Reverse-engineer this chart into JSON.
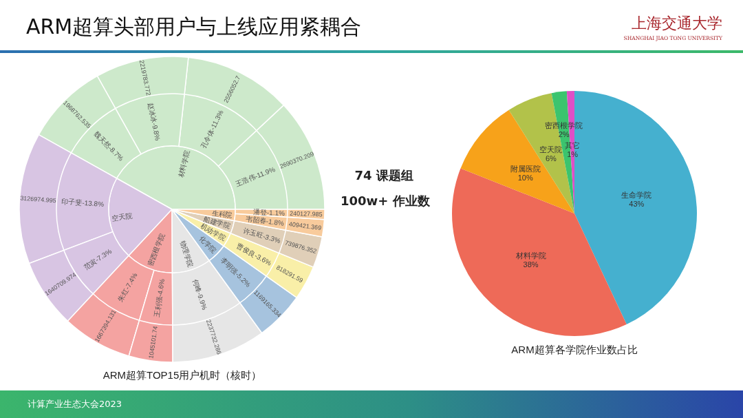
{
  "chart_data": [
    {
      "type": "other",
      "title": "ARM超算TOP15用户机时（核时）",
      "categories": [
        "王浩伟-11.9%",
        "孔令体-11.3%",
        "赵冰冰-9.8%",
        "魏天然-8.7%",
        "印子斐-13.8%",
        "范寅-7.3%",
        "朱红-7.4%",
        "王利强-4.6%",
        "何峰-9.9%",
        "李明强-5.2%",
        "曹俊良-3.6%",
        "许玉旺-3.3%",
        "韦韶春-1.8%",
        "潘登-1.1%"
      ],
      "series": [
        {
          "name": "材料学院",
          "color": "#cde9cb",
          "values": [
            2690370.209,
            2556052.7,
            2219783.772,
            1968762.535,
            null,
            null,
            null,
            null,
            null,
            null,
            null,
            null,
            null,
            null
          ]
        },
        {
          "name": "空天院",
          "color": "#d8c5e3",
          "values": [
            null,
            null,
            null,
            null,
            3126974.995,
            1640709.974,
            null,
            null,
            null,
            null,
            null,
            null,
            null,
            null
          ]
        },
        {
          "name": "密西根学院",
          "color": "#f4a3a1",
          "values": [
            null,
            null,
            null,
            null,
            null,
            null,
            1667394.131,
            1045101.74,
            null,
            null,
            null,
            null,
            null,
            null
          ]
        },
        {
          "name": "物理学院",
          "color": "#e6e6e6",
          "values": [
            null,
            null,
            null,
            null,
            null,
            null,
            null,
            null,
            2237732.286,
            null,
            null,
            null,
            null,
            null
          ]
        },
        {
          "name": "化学院",
          "color": "#a6c3de",
          "values": [
            null,
            null,
            null,
            null,
            null,
            null,
            null,
            null,
            null,
            1169165.334,
            null,
            null,
            null,
            null
          ]
        },
        {
          "name": "机动学院",
          "color": "#f9efa8",
          "values": [
            null,
            null,
            null,
            null,
            null,
            null,
            null,
            null,
            null,
            null,
            818291.59,
            null,
            null,
            null
          ]
        },
        {
          "name": "船建学院",
          "color": "#e0cfb8",
          "values": [
            null,
            null,
            null,
            null,
            null,
            null,
            null,
            null,
            null,
            null,
            null,
            739876.352,
            null,
            null
          ]
        },
        {
          "name": "生科院",
          "color": "#f8cb9c",
          "values": [
            null,
            null,
            null,
            null,
            null,
            null,
            null,
            null,
            null,
            null,
            null,
            null,
            409421.369,
            240127.985
          ]
        }
      ],
      "data_labels": true,
      "annotations": [
        "ARM超算头部用户与上线应用紧耦合",
        "上海交通大学",
        "SHANGHAI JIAO TONG UNIVERSITY",
        "计算产业生态大会2023"
      ]
    },
    {
      "type": "pie",
      "title": "ARM超算各学院作业数占比",
      "categories": [
        "生命学院",
        "材料学院",
        "附属医院",
        "空天院",
        "密西根学院",
        "其它"
      ],
      "values": [
        43,
        38,
        10,
        6,
        2,
        1
      ],
      "value_labels": [
        "43%",
        "38%",
        "10%",
        "6%",
        "2%",
        "1%"
      ],
      "colors": [
        "#45b0cf",
        "#ee6a58",
        "#f7a21a",
        "#b2c24a",
        "#3cc46e",
        "#e04fc6"
      ],
      "annotations": [
        "74 课题组",
        "100w+ 作业数"
      ]
    }
  ]
}
